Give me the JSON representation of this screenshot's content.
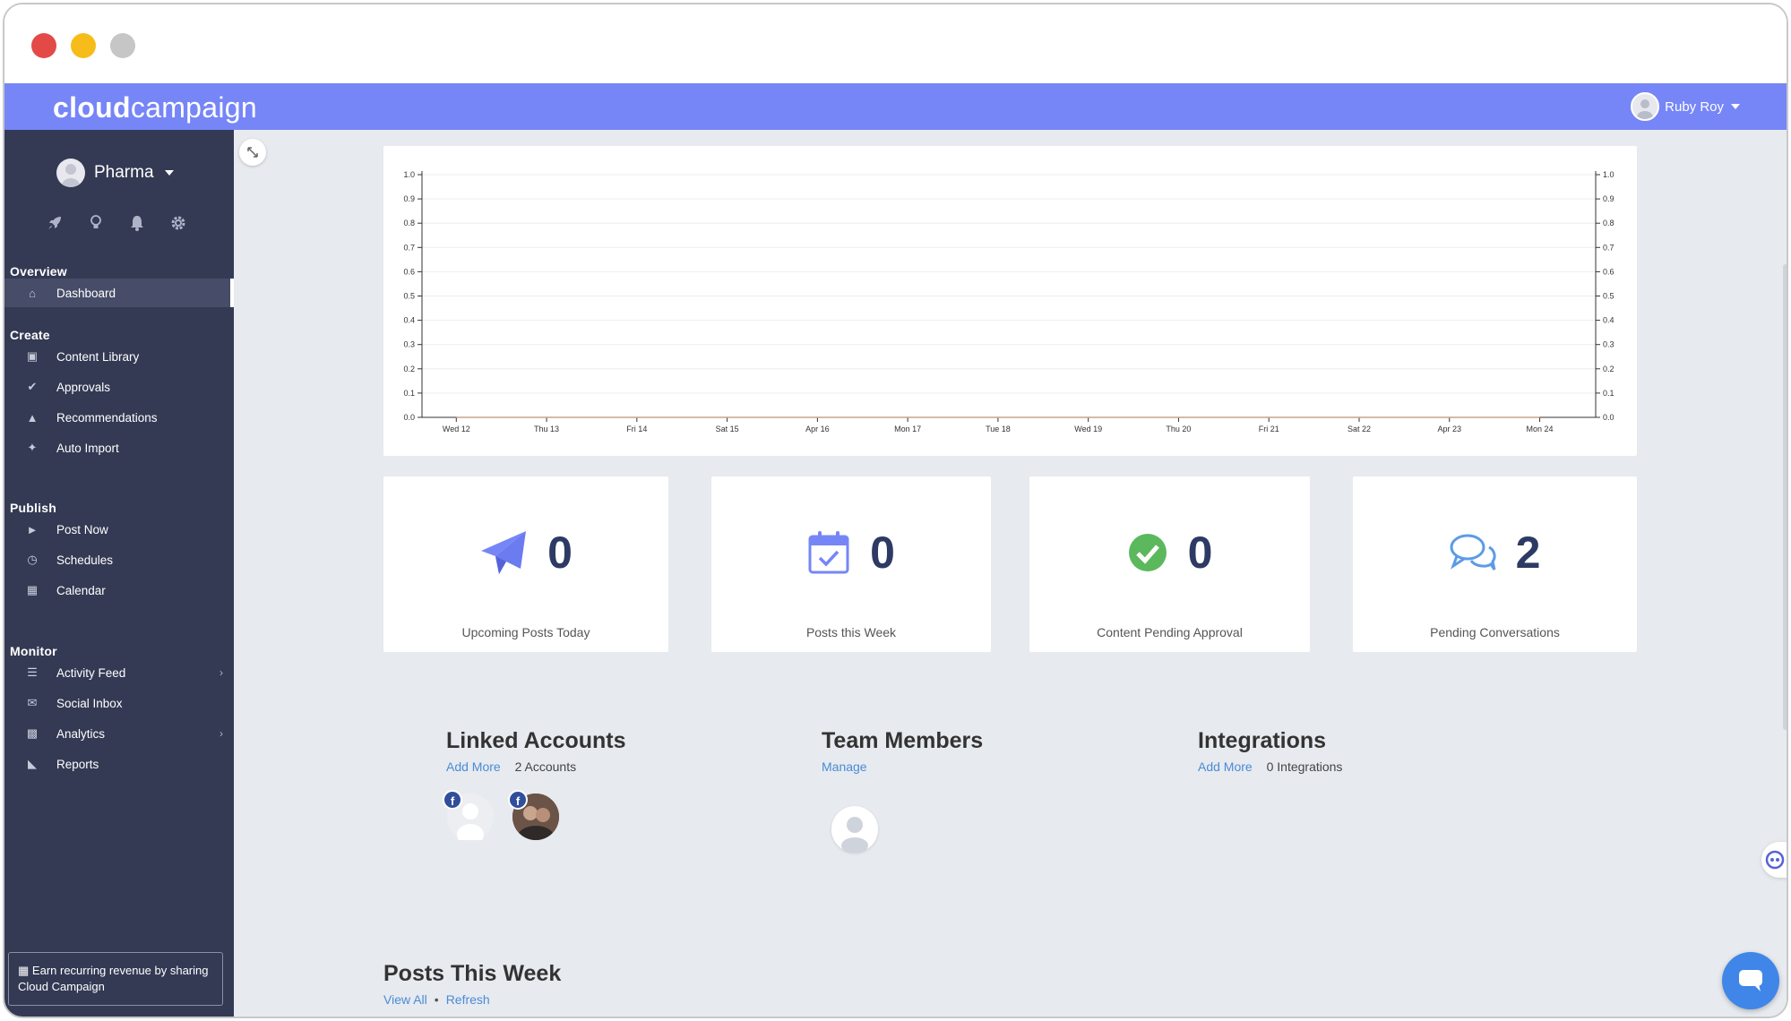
{
  "app": {
    "logo_bold": "cloud",
    "logo_light": "campaign",
    "user_name": "Ruby Roy"
  },
  "sidebar": {
    "org_name": "Pharma",
    "quick_icons": [
      "rocket-icon",
      "lightbulb-icon",
      "bell-icon",
      "gear-icon"
    ],
    "sections": {
      "overview": "Overview",
      "create": "Create",
      "publish": "Publish",
      "monitor": "Monitor"
    },
    "items": {
      "dashboard": "Dashboard",
      "content_library": "Content Library",
      "approvals": "Approvals",
      "recommendations": "Recommendations",
      "auto_import": "Auto Import",
      "post_now": "Post Now",
      "schedules": "Schedules",
      "calendar": "Calendar",
      "activity_feed": "Activity Feed",
      "social_inbox": "Social Inbox",
      "analytics": "Analytics",
      "reports": "Reports"
    },
    "earn_text": "Earn recurring revenue by sharing Cloud Campaign"
  },
  "chart_data": {
    "type": "line",
    "categories": [
      "Wed 12",
      "Thu 13",
      "Fri 14",
      "Sat 15",
      "Apr 16",
      "Mon 17",
      "Tue 18",
      "Wed 19",
      "Thu 20",
      "Fri 21",
      "Sat 22",
      "Apr 23",
      "Mon 24"
    ],
    "series": [
      {
        "values": [
          0,
          0,
          0,
          0,
          0,
          0,
          0,
          0,
          0,
          0,
          0,
          0,
          0
        ]
      }
    ],
    "ylim": [
      0,
      1.0
    ],
    "yticks": [
      "0.0",
      "0.1",
      "0.2",
      "0.3",
      "0.4",
      "0.5",
      "0.6",
      "0.7",
      "0.8",
      "0.9",
      "1.0"
    ],
    "dual_axis": true,
    "grid": true
  },
  "stats": [
    {
      "value": "0",
      "label": "Upcoming Posts Today",
      "icon": "paper-plane-icon"
    },
    {
      "value": "0",
      "label": "Posts this Week",
      "icon": "calendar-check-icon"
    },
    {
      "value": "0",
      "label": "Content Pending Approval",
      "icon": "check-circle-icon"
    },
    {
      "value": "2",
      "label": "Pending Conversations",
      "icon": "chat-bubbles-icon"
    }
  ],
  "linked": {
    "title": "Linked Accounts",
    "link": "Add More",
    "count": "2 Accounts"
  },
  "team": {
    "title": "Team Members",
    "link": "Manage"
  },
  "integrations": {
    "title": "Integrations",
    "link": "Add More",
    "count": "0 Integrations"
  },
  "posts": {
    "title": "Posts This Week",
    "view_all": "View All",
    "refresh": "Refresh"
  },
  "colors": {
    "topbar": "#7686f7",
    "sidebar": "#343a54",
    "link": "#4a8bd6",
    "accent_icon": "#7686f7",
    "success": "#5cb85c"
  }
}
